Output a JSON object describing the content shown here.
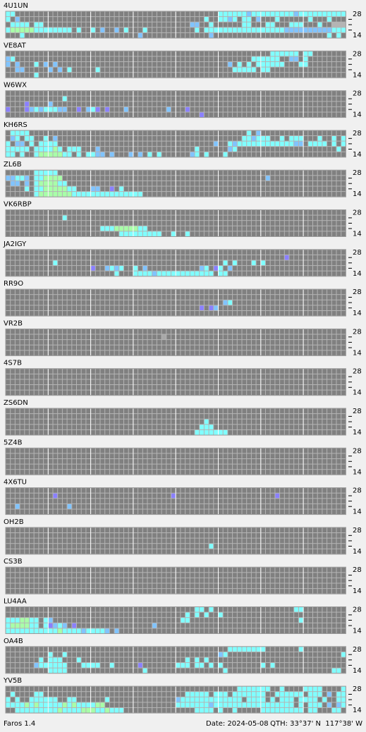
{
  "beacons": [
    {
      "name": "4U1UN",
      "rows": [
        "330000000000000000000000000000000000000000000333333233333333323333333333",
        "302000000000000000000000000000000000000000300332303302000300000030003000",
        "033330330000000000000000000000000000000220030000003300033000333000300",
        "344444333333330300302002030003000000000030333333333333333332222222222333",
        "000300000000000000000000000020000000000000020000000000000000000000003030"
      ]
    },
    {
      "name": "VE8AT",
      "rows": [
        "000000000000000000000000000000000000000000000000000000003333330330000000",
        "230000000000000000000000000000000000000000000000000033333300220300000000",
        "202000302020000000000000000000000000000000000002030303333330003300000000",
        "002200000202030000030000000000000000000000000000333330330000000000000000",
        "000000300000000000000000000000000000000000000000000000000000000000000000"
      ]
    },
    {
      "name": "W6WX",
      "rows": [
        "000000000000000000000000000000000000000000000000000000000000000000000000",
        "000000000000300000000000000000000000000000000000000000000000000000000000",
        "000010000200000000000000000000000000000000000000000000000000000000000000",
        "100012323332200102310100020000000020001000000000000000000000000000000000",
        "000000000000000000000000000000000000000001000000000000000000000000000000"
      ]
    },
    {
      "name": "KH6RS",
      "rows": [
        "033330000000000000000000000000000000000000000000000302000000000000000000",
        "023033003020000000000000000000000000000000000000003323330030333000300303",
        "302203033330000000000000000000000000000000002003233333333333322033330303",
        "333330333343033300020000000000000000000030000002300000000000000000000030",
        "330300344444330303322020002020303000000230300030000000000000000000000000"
      ]
    },
    {
      "name": "ZL6B",
      "rows": [
        "000000333330000000000000000000000000000000000000000000000000000000000000",
        "223320334444000000000000000000000000000000000000000000020000000000000000",
        "022020344443300000000000000000000000000000000000000000000000000000000000",
        "000030334444433000220010300000000000000000000000000000000000000000000000",
        "000000344444443333333333333330000000000000000000000000000000000000000000"
      ]
    },
    {
      "name": "VK6RBP",
      "rows": [
        "000000000000000000000000000000000000000000000000000000000000000000000000",
        "000000000000300000000000000000000000000000000000000000000000000000000000",
        "000000000000000000000000000000000000000000000000000000000000000000000000",
        "000000000000000000003334444433000000000000000000000000000000000000000000",
        "000000000000000000000000333333333003003000000000000000000000000000000000"
      ]
    },
    {
      "name": "JA2IGY",
      "rows": [
        "000000000000000000000000000000000000000000000000000000000000000000000000",
        "000000000000000000000000000000000000000000000000000000000001000000000000",
        "000000000030000000000000000000000000000000000030300030300000000000000000",
        "000000000000000000100232300302000000000002301302000000000000000000000000",
        "000000000000000000000003000333323333333333330330000000000000000000000000"
      ]
    },
    {
      "name": "RR9O",
      "rows": [
        "000000000000000000000000000000000000000000000000000000000000000000000000",
        "000000000000000000000000000000000000000000000000000000000000000000000000",
        "000000000000000000000000000000000000000000000023000000000000000000000000",
        "000000000000000000000000000000000000000001012000000000000000000000000000",
        "000000000000000000000000000000000000000000000000000000000000000000000000"
      ]
    },
    {
      "name": "VR2B",
      "rows": [
        "000000000000000000000000000000000000000000000000000000000000000000000000",
        "000000000000000000000000000000000500000000000000000000000000000000000000",
        "000000000000000000000000000000000000000000000000000000000000000000000000",
        "000000000000000000000000000000000000000000000000000000000000000000000000",
        "000000000000000000000000000000000000000000000000000000000000000000000000"
      ]
    },
    {
      "name": "4S7B",
      "rows": [
        "000000000000000000000000000000000000000000000000000000000000000000000000",
        "000000000000000000000000000000000000000000000000000000000000000000000000",
        "000000000000000000000000000000000000000000000000000000000000000000000000",
        "000000000000000000000000000000000000000000000000000000000000000000000000",
        "000000000000000000000000000000000000000000000000000000000000000000000000"
      ]
    },
    {
      "name": "ZS6DN",
      "rows": [
        "000000000000000000000000000000000000000000000000000000000000000000000000",
        "000000000000000000000000000000000000000000000000000000000000000000000000",
        "000000000000000000000000000000000000000000300000000000000000000000000000",
        "000000000000000000000000000000000000000003330000000000000000000000000000",
        "000000000000000000000000000000000000000033333330000000000000000000000000"
      ]
    },
    {
      "name": "5Z4B",
      "rows": [
        "000000000000000000000000000000000000000000000000000000000000000000000000",
        "000000000000000000000000000000000000000000000000000000000000000000000000",
        "000000000000000000000000000000000000000000000000000000000000000000000000",
        "000000000000000000000000000000000000000000000000000000000000000000000000",
        "000000000000000000000000000000000000000000000000000000000000000000000000"
      ]
    },
    {
      "name": "4X6TU",
      "rows": [
        "000000000000000000000000000000000000000000000000000000000000000000000000",
        "000000000010000000000000000000000001000000000000000000000100000000000000",
        "000000000000000000000000000000000000000000000000000000000000000000000000",
        "002000000000020000000000000000000000000000000000000000000000000000000000",
        "000000000000000000000000000000000000000000000000000000000000000000000000"
      ]
    },
    {
      "name": "OH2B",
      "rows": [
        "000000000000000000000000000000000000000000000000000000000000000000000000",
        "000000000000000000000000000000000000000000000000000000000000000000000000",
        "000000000000000000000000000000000000000000000000000000000000000000000000",
        "000000000000000000000000000000000000000000030000000000000000000000000000",
        "000000000000000000000000000000000000000000000000000000000000000000000000"
      ]
    },
    {
      "name": "CS3B",
      "rows": [
        "000000000000000000000000000000000000000000000000000000000000000000000000",
        "000000000000000000000000000000000000000000000000000000000000000000000000",
        "000000000000000000000000000000000000000000000000000000000000000000000000",
        "000000000000000000000000000000000000000000000000000000000000000000000000",
        "000000000000000000000000000000000000000000000000000000000000000000000000"
      ]
    },
    {
      "name": "LU4AA",
      "rows": [
        "000000000000000000000000000000000000000033030000000000000000033000000000",
        "000000000000000000000000000000000000003030300300000000000000000000000000",
        "333443303200000000000000000000000000033000000000000000000000003000000000",
        "344443303123201000000000000000020000000000000000000000000000000000000000",
        "333333333334333323333202000000000000000000000000000000000000000000000000"
      ]
    },
    {
      "name": "OA4B",
      "rows": [
        "000000000000000000000000000000000000000000000003333333300000003000000000",
        "000000000300300000000000000000000000000000000230000000000000000000000003",
        "000000030333000300000000000000000000003030300000000000000000000000000000",
        "000000233333300033330030000010000000333033030300000000303000000000000000",
        "000000000333300000000000000003000000000000000030000000000000000000000330"
      ]
    },
    {
      "name": "YV5B",
      "rows": [
        "000000000000000000000000000000000000000000000000033333330030000333300003",
        "030000330000000000000000000000000000003333303330333333300333333033302033",
        "303003333330033000000300000000000000233333333333330333303033303333030033",
        "333343433333434333344000000000000000333333323333333333333333303033302023",
        "003333333334333344433433300000000000000033330300300000333333333033000330"
      ]
    }
  ],
  "band_labels": {
    "top": "28",
    "bottom": "14"
  },
  "footer": {
    "app": "Faros 1.4",
    "date": "Date: 2024-05-08",
    "qth": "QTH: 33°37' N  117°38' W"
  }
}
